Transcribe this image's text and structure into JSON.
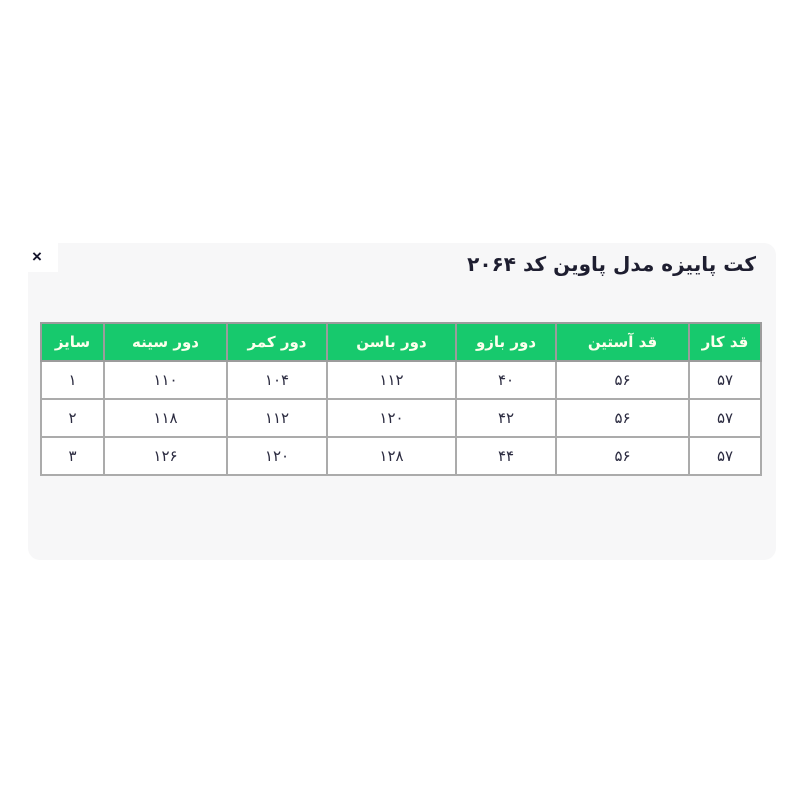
{
  "title": "کت پاییزه مدل پاوین کد ۲۰۶۴",
  "close_button": {
    "icon": "×"
  },
  "colors": {
    "page_background": "#ffffff",
    "card_background": "#f7f7f8",
    "header_background": "#17c96d",
    "header_text": "#fcffec",
    "cell_text": "#2b2b40",
    "border": "#9c9c9c"
  },
  "size_table": {
    "columns": [
      "قد کار",
      "قد آستین",
      "دور بازو",
      "دور باسن",
      "دور کمر",
      "دور سینه",
      "سایز"
    ],
    "rows": [
      [
        "۵۷",
        "۵۶",
        "۴۰",
        "۱۱۲",
        "۱۰۴",
        "۱۱۰",
        "۱"
      ],
      [
        "۵۷",
        "۵۶",
        "۴۲",
        "۱۲۰",
        "۱۱۲",
        "۱۱۸",
        "۲"
      ],
      [
        "۵۷",
        "۵۶",
        "۴۴",
        "۱۲۸",
        "۱۲۰",
        "۱۲۶",
        "۳"
      ]
    ]
  }
}
